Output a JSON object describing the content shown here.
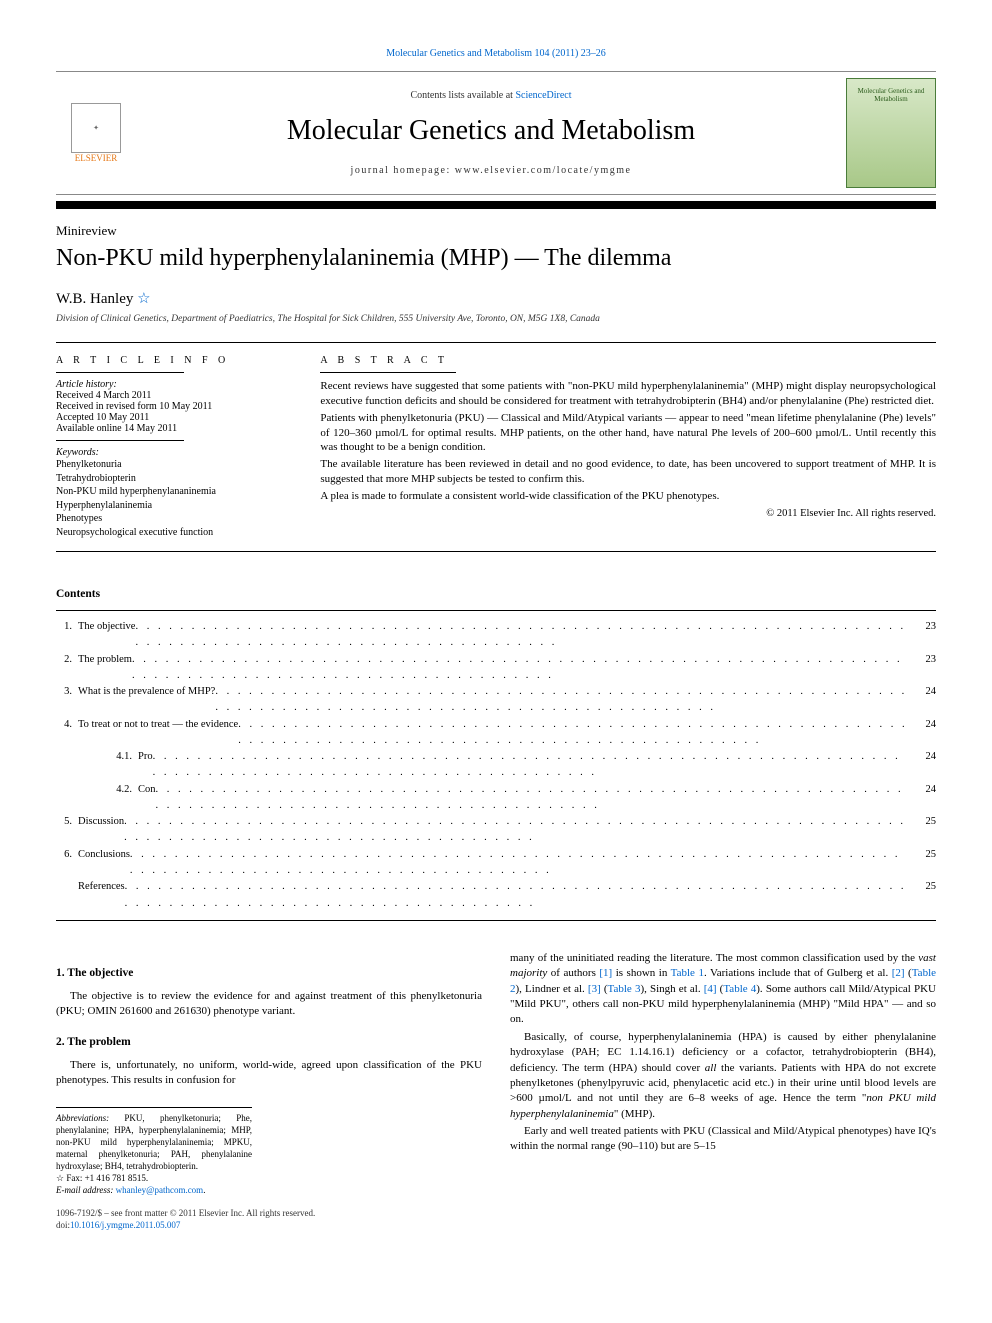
{
  "top_link": {
    "text": "Molecular Genetics and Metabolism 104 (2011) 23–26"
  },
  "header": {
    "contents_prefix": "Contents lists available at ",
    "contents_link": "ScienceDirect",
    "journal": "Molecular Genetics and Metabolism",
    "homepage_label": "journal homepage: www.elsevier.com/locate/ymgme",
    "publisher_name": "ELSEVIER",
    "cover_caption": "Molecular Genetics and Metabolism"
  },
  "article": {
    "type": "Minireview",
    "title": "Non-PKU mild hyperphenylalaninemia (MHP) — The dilemma",
    "author": "W.B. Hanley",
    "affiliation": "Division of Clinical Genetics, Department of Paediatrics, The Hospital for Sick Children, 555 University Ave, Toronto, ON, M5G 1X8, Canada"
  },
  "info": {
    "heading": "A R T I C L E   I N F O",
    "history_label": "Article history:",
    "history": [
      "Received 4 March 2011",
      "Received in revised form 10 May 2011",
      "Accepted 10 May 2011",
      "Available online 14 May 2011"
    ],
    "keywords_label": "Keywords:",
    "keywords": [
      "Phenylketonuria",
      "Tetrahydrobiopterin",
      "Non-PKU mild hyperphenylananinemia",
      "Hyperphenylalaninemia",
      "Phenotypes",
      "Neuropsychological executive function"
    ]
  },
  "abstract": {
    "heading": "A B S T R A C T",
    "paragraphs": [
      "Recent reviews have suggested that some patients with \"non-PKU mild hyperphenylalaninemia\" (MHP) might display neuropsychological executive function deficits and should be considered for treatment with tetrahydrobipterin (BH4) and/or phenylalanine (Phe) restricted diet.",
      "Patients with phenylketonuria (PKU) — Classical and Mild/Atypical variants — appear to need \"mean lifetime phenylalanine (Phe) levels\" of 120–360 µmol/L for optimal results. MHP patients, on the other hand, have natural Phe levels of 200–600 µmol/L. Until recently this was thought to be a benign condition.",
      "The available literature has been reviewed in detail and no good evidence, to date, has been uncovered to support treatment of MHP. It is suggested that more MHP subjects be tested to confirm this.",
      "A plea is made to formulate a consistent world-wide classification of the PKU phenotypes."
    ],
    "copyright": "© 2011 Elsevier Inc. All rights reserved."
  },
  "contents": {
    "title": "Contents",
    "items": [
      {
        "num": "1.",
        "label": "The objective",
        "page": "23",
        "indent": 0
      },
      {
        "num": "2.",
        "label": "The problem",
        "page": "23",
        "indent": 0
      },
      {
        "num": "3.",
        "label": "What is the prevalence of MHP?",
        "page": "24",
        "indent": 0
      },
      {
        "num": "4.",
        "label": "To treat or not to treat — the evidence",
        "page": "24",
        "indent": 0
      },
      {
        "num": "4.1.",
        "label": "Pro",
        "page": "24",
        "indent": 1
      },
      {
        "num": "4.2.",
        "label": "Con",
        "page": "24",
        "indent": 1
      },
      {
        "num": "5.",
        "label": "Discussion",
        "page": "25",
        "indent": 0
      },
      {
        "num": "6.",
        "label": "Conclusions",
        "page": "25",
        "indent": 0
      },
      {
        "num": "",
        "label": "References",
        "page": "25",
        "indent": 0
      }
    ]
  },
  "body": {
    "s1_title": "1. The objective",
    "s1_p1": "The objective is to review the evidence for and against treatment of this phenylketonuria (PKU; OMIN 261600 and 261630) phenotype variant.",
    "s2_title": "2. The problem",
    "s2_p1": "There is, unfortunately, no uniform, world-wide, agreed upon classification of the PKU phenotypes. This results in confusion for",
    "col2_p1_a": "many of the uninitiated reading the literature. The most common classification used by the ",
    "col2_p1_b": "vast majority",
    "col2_p1_c": " of authors ",
    "col2_ref1": "[1]",
    "col2_p1_d": " is shown in ",
    "col2_t1": "Table 1",
    "col2_p1_e": ". Variations include that of Gulberg et al. ",
    "col2_ref2": "[2]",
    "col2_p1_f": " (",
    "col2_t2": "Table 2",
    "col2_p1_g": "), Lindner et al. ",
    "col2_ref3": "[3]",
    "col2_p1_h": " (",
    "col2_t3": "Table 3",
    "col2_p1_i": "), Singh et al. ",
    "col2_ref4": "[4]",
    "col2_p1_j": " (",
    "col2_t4": "Table 4",
    "col2_p1_k": "). Some authors call Mild/Atypical PKU \"Mild PKU\", others call non-PKU mild hyperphenylalaninemia (MHP) \"Mild HPA\" — and so on.",
    "col2_p2_a": "Basically, of course, hyperphenylalaninemia (HPA) is caused by either phenylalanine hydroxylase (PAH; EC 1.14.16.1) deficiency or a cofactor, tetrahydrobiopterin (BH4), deficiency. The term (HPA) should cover ",
    "col2_p2_b": "all",
    "col2_p2_c": " the variants. Patients with HPA do not excrete phenylketones (phenylpyruvic acid, phenylacetic acid etc.) in their urine until blood levels are >600 µmol/L and not until they are 6–8 weeks of age. Hence the term \"",
    "col2_p2_d": "non PKU mild hyperphenylalaninemia",
    "col2_p2_e": "\" (MHP).",
    "col2_p3": "Early and well treated patients with PKU (Classical and Mild/Atypical phenotypes) have IQ's within the normal range (90–110) but are 5–15"
  },
  "footnotes": {
    "abbrev_label": "Abbreviations:",
    "abbrev_text": " PKU, phenylketonuria; Phe, phenylalanine; HPA, hyperphenylalaninemia; MHP, non-PKU mild hyperphenylalaninemia; MPKU, maternal phenylketonuria; PAH, phenylalanine hydroxylase; BH4, tetrahydrobiopterin.",
    "fax": "Fax: +1 416 781 8515.",
    "email_label": "E-mail address:",
    "email": "whanley@pathcom.com"
  },
  "bottom": {
    "line1": "1096-7192/$ – see front matter © 2011 Elsevier Inc. All rights reserved.",
    "doi_label": "doi:",
    "doi": "10.1016/j.ymgme.2011.05.007"
  },
  "colors": {
    "link": "#0066cc",
    "text": "#000000",
    "elsevier": "#e67817"
  }
}
